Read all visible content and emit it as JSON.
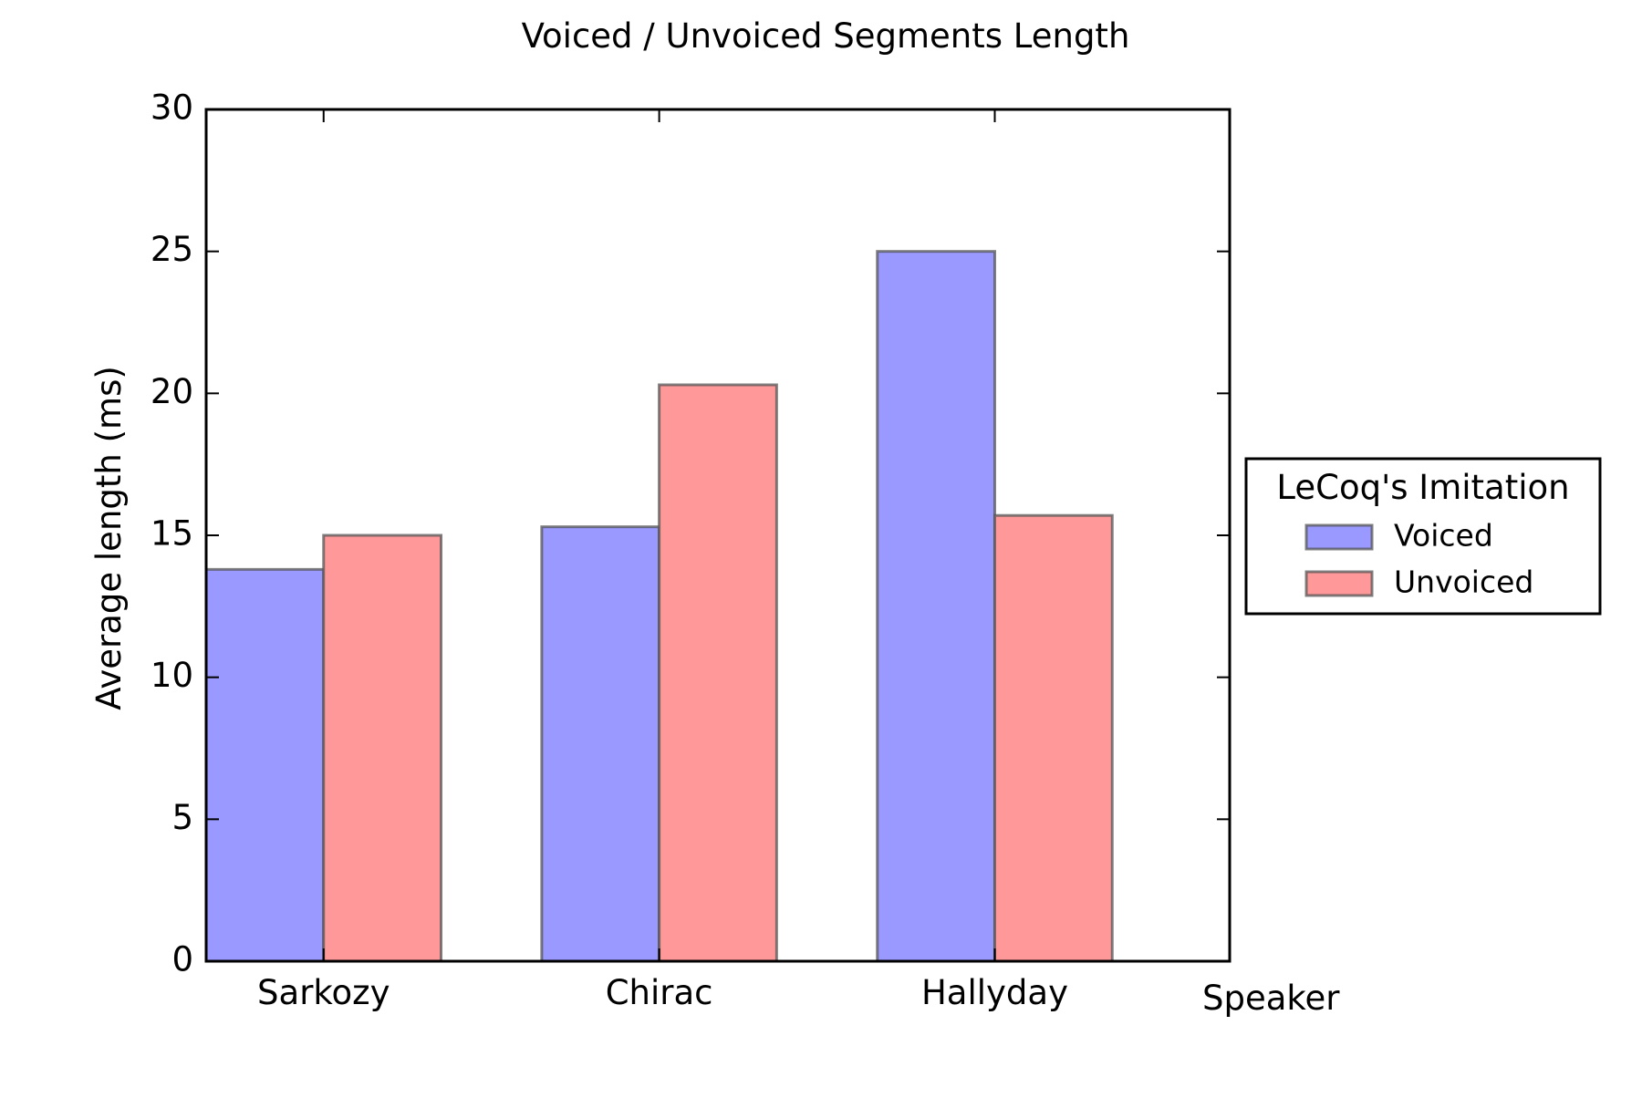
{
  "chart_data": {
    "type": "bar",
    "title": "Voiced / Unvoiced Segments Length",
    "xlabel": "Speaker",
    "ylabel": "Average length (ms)",
    "categories": [
      "Sarkozy",
      "Chirac",
      "Hallyday"
    ],
    "series": [
      {
        "name": "Voiced",
        "values": [
          13.8,
          15.3,
          25.0
        ],
        "color": "#9999ff"
      },
      {
        "name": "Unvoiced",
        "values": [
          15.0,
          20.3,
          15.7
        ],
        "color": "#ff9999"
      }
    ],
    "ylim": [
      0,
      30
    ],
    "yticks": [
      0,
      5,
      10,
      15,
      20,
      25,
      30
    ],
    "grid": false,
    "legend": {
      "title": "LeCoq's Imitation",
      "placement": "outside-right"
    }
  }
}
